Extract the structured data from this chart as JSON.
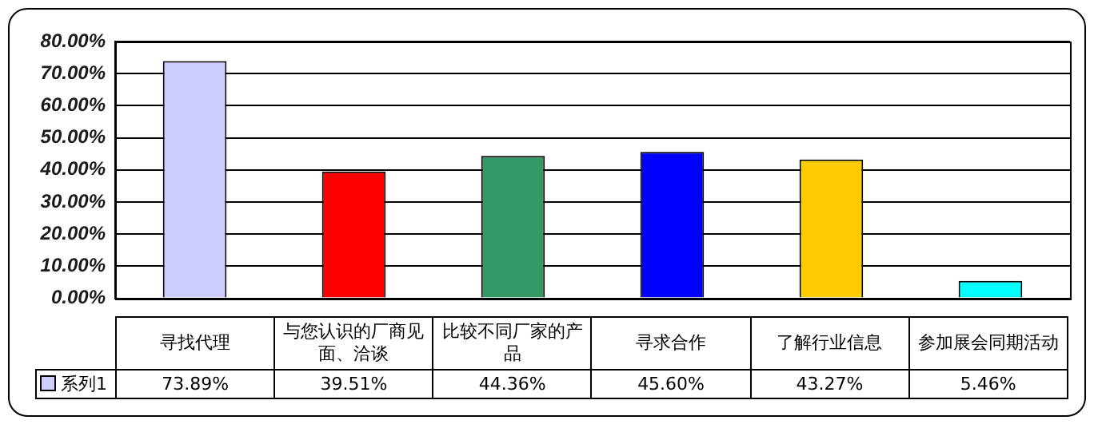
{
  "chart_data": {
    "type": "bar",
    "categories": [
      "寻找代理",
      "与您认识的厂商见面、洽谈",
      "比较不同厂家的产品",
      "寻求合作",
      "了解行业信息",
      "参加展会同期活动"
    ],
    "series": [
      {
        "name": "系列1",
        "color": "#ccccff",
        "colors": [
          "#ccccff",
          "#ff0000",
          "#339966",
          "#0000ff",
          "#ffcc00",
          "#00ffff"
        ],
        "values": [
          73.89,
          39.51,
          44.36,
          45.6,
          43.27,
          5.46
        ],
        "value_labels": [
          "73.89%",
          "39.51%",
          "44.36%",
          "45.60%",
          "43.27%",
          "5.46%"
        ]
      }
    ],
    "ylim": [
      0,
      80
    ],
    "yticks": [
      {
        "value": 0,
        "label": "0.00%"
      },
      {
        "value": 10,
        "label": "10.00%"
      },
      {
        "value": 20,
        "label": "20.00%"
      },
      {
        "value": 30,
        "label": "30.00%"
      },
      {
        "value": 40,
        "label": "40.00%"
      },
      {
        "value": 50,
        "label": "50.00%"
      },
      {
        "value": 60,
        "label": "60.00%"
      },
      {
        "value": 70,
        "label": "70.00%"
      },
      {
        "value": 80,
        "label": "80.00%"
      }
    ],
    "grid": "y",
    "legend": "bottom left"
  }
}
